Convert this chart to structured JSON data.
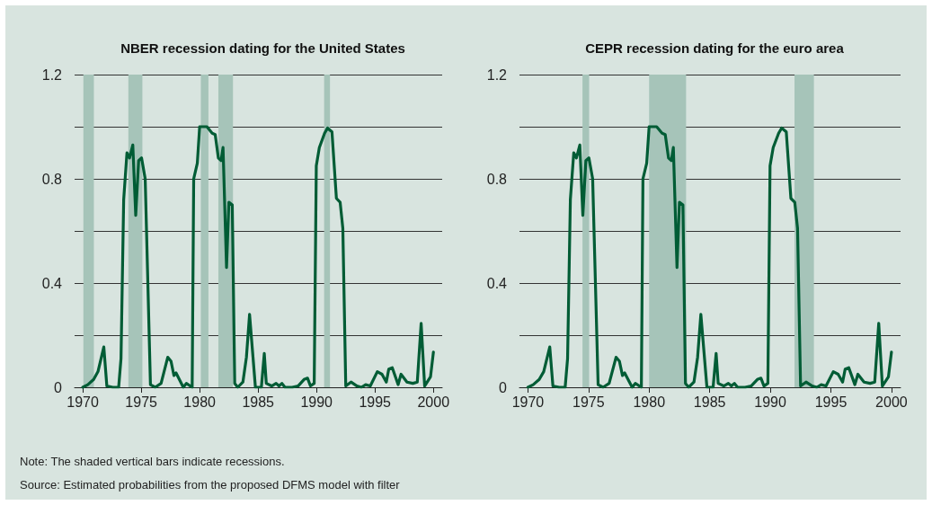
{
  "chart_data": [
    {
      "type": "line",
      "title": "NBER recession dating for the United States",
      "grid": "y",
      "marker": "none",
      "line_style": "solid",
      "xlim": [
        1969.3,
        2000.75
      ],
      "xticks": [
        1970,
        1975,
        1980,
        1985,
        1990,
        1995,
        2000
      ],
      "ylim": [
        0,
        1.2
      ],
      "yticks": [
        0,
        {
          "value": 0.2,
          "label": null
        },
        0.4,
        {
          "value": 0.6,
          "label": null
        },
        0.8,
        {
          "value": 1.0,
          "label": null
        },
        1.2
      ],
      "bands": [
        {
          "axis": "x",
          "from": 1970.05,
          "to": 1970.95,
          "color": "#a6c4b9"
        },
        {
          "axis": "x",
          "from": 1973.9,
          "to": 1975.1,
          "color": "#a6c4b9"
        },
        {
          "axis": "x",
          "from": 1980.1,
          "to": 1980.75,
          "color": "#a6c4b9"
        },
        {
          "axis": "x",
          "from": 1981.6,
          "to": 1982.85,
          "color": "#a6c4b9"
        },
        {
          "axis": "x",
          "from": 1990.65,
          "to": 1991.15,
          "color": "#a6c4b9"
        }
      ],
      "series": [
        {
          "color": "#005c35",
          "x": [
            1970,
            1970.43,
            1970.93,
            1971.3,
            1971.8,
            1972.06,
            1972.57,
            1973.07,
            1973.27,
            1973.5,
            1973.78,
            1974.0,
            1974.28,
            1974.53,
            1974.78,
            1975.03,
            1975.34,
            1975.79,
            1976.2,
            1976.7,
            1977.27,
            1977.55,
            1977.8,
            1977.98,
            1978.6,
            1978.86,
            1979.36,
            1979.49,
            1979.8,
            1980.0,
            1980.62,
            1981.07,
            1981.33,
            1981.6,
            1981.83,
            1982.0,
            1982.3,
            1982.5,
            1982.79,
            1983.0,
            1983.26,
            1983.7,
            1984.0,
            1984.27,
            1984.77,
            1985.28,
            1985.53,
            1985.7,
            1986.16,
            1986.54,
            1986.79,
            1987.04,
            1987.3,
            1987.92,
            1988.42,
            1988.93,
            1989.23,
            1989.48,
            1989.8,
            1989.98,
            1990.24,
            1990.69,
            1990.94,
            1991.32,
            1991.7,
            1992.02,
            1992.25,
            1992.5,
            1992.95,
            1993.46,
            1993.84,
            1994.2,
            1994.6,
            1995.2,
            1995.6,
            1995.97,
            1996.18,
            1996.48,
            1996.98,
            1997.23,
            1997.74,
            1998.24,
            1998.62,
            1998.95,
            1999.25,
            1999.75,
            2000.0
          ],
          "values": [
            0,
            0.01,
            0.03,
            0.06,
            0.155,
            0.005,
            0,
            0,
            0.11,
            0.72,
            0.9,
            0.88,
            0.93,
            0.66,
            0.87,
            0.88,
            0.8,
            0.01,
            0,
            0.015,
            0.115,
            0.1,
            0.045,
            0.055,
            0,
            0.015,
            0,
            0.8,
            0.86,
            1.0,
            1.0,
            0.975,
            0.97,
            0.88,
            0.87,
            0.92,
            0.46,
            0.71,
            0.7,
            0.015,
            0,
            0.02,
            0.115,
            0.28,
            0,
            0,
            0.13,
            0.015,
            0.005,
            0.015,
            0.005,
            0.015,
            0,
            0,
            0.005,
            0.03,
            0.035,
            0.005,
            0.015,
            0.85,
            0.92,
            0.975,
            0.995,
            0.98,
            0.725,
            0.71,
            0.61,
            0.005,
            0.02,
            0.005,
            0,
            0.01,
            0.005,
            0.06,
            0.05,
            0.02,
            0.07,
            0.075,
            0.01,
            0.05,
            0.02,
            0.015,
            0.02,
            0.245,
            0.005,
            0.04,
            0.135
          ]
        }
      ],
      "annotations": [
        "Note: The shaded vertical bars indicate recessions.",
        "Source: Estimated probabilities from the proposed DFMS model with filter"
      ]
    },
    {
      "type": "line",
      "title": "CEPR recession dating for the euro area",
      "grid": "y",
      "marker": "none",
      "line_style": "solid",
      "xlim": [
        1969.3,
        2000.75
      ],
      "xticks": [
        1970,
        1975,
        1980,
        1985,
        1990,
        1995,
        2000
      ],
      "ylim": [
        0,
        1.2
      ],
      "yticks": [
        0,
        {
          "value": 0.2,
          "label": null
        },
        0.4,
        {
          "value": 0.6,
          "label": null
        },
        0.8,
        {
          "value": 1.0,
          "label": null
        },
        1.2
      ],
      "bands": [
        {
          "axis": "x",
          "from": 1974.5,
          "to": 1975.05,
          "color": "#a6c4b9"
        },
        {
          "axis": "x",
          "from": 1980.0,
          "to": 1983.05,
          "color": "#a6c4b9"
        },
        {
          "axis": "x",
          "from": 1992.0,
          "to": 1993.6,
          "color": "#a6c4b9"
        }
      ],
      "series": [
        {
          "color": "#005c35",
          "x": [
            1970,
            1970.43,
            1970.93,
            1971.3,
            1971.8,
            1972.06,
            1972.57,
            1973.07,
            1973.27,
            1973.5,
            1973.78,
            1974.0,
            1974.28,
            1974.53,
            1974.78,
            1975.03,
            1975.34,
            1975.79,
            1976.2,
            1976.7,
            1977.27,
            1977.55,
            1977.8,
            1977.98,
            1978.6,
            1978.86,
            1979.36,
            1979.49,
            1979.8,
            1980.0,
            1980.62,
            1981.07,
            1981.33,
            1981.6,
            1981.83,
            1982.0,
            1982.3,
            1982.5,
            1982.79,
            1983.0,
            1983.26,
            1983.7,
            1984.0,
            1984.27,
            1984.77,
            1985.28,
            1985.53,
            1985.7,
            1986.16,
            1986.54,
            1986.79,
            1987.04,
            1987.3,
            1987.92,
            1988.42,
            1988.93,
            1989.23,
            1989.48,
            1989.8,
            1989.98,
            1990.24,
            1990.69,
            1990.94,
            1991.32,
            1991.7,
            1992.02,
            1992.25,
            1992.5,
            1992.95,
            1993.46,
            1993.84,
            1994.2,
            1994.6,
            1995.2,
            1995.6,
            1995.97,
            1996.18,
            1996.48,
            1996.98,
            1997.23,
            1997.74,
            1998.24,
            1998.62,
            1998.95,
            1999.25,
            1999.75,
            2000.0
          ],
          "values": [
            0,
            0.01,
            0.03,
            0.06,
            0.155,
            0.005,
            0,
            0,
            0.11,
            0.72,
            0.9,
            0.88,
            0.93,
            0.66,
            0.87,
            0.88,
            0.8,
            0.01,
            0,
            0.015,
            0.115,
            0.1,
            0.045,
            0.055,
            0,
            0.015,
            0,
            0.8,
            0.86,
            1.0,
            1.0,
            0.975,
            0.97,
            0.88,
            0.87,
            0.92,
            0.46,
            0.71,
            0.7,
            0.015,
            0,
            0.02,
            0.115,
            0.28,
            0,
            0,
            0.13,
            0.015,
            0.005,
            0.015,
            0.005,
            0.015,
            0,
            0,
            0.005,
            0.03,
            0.035,
            0.005,
            0.015,
            0.85,
            0.92,
            0.975,
            0.995,
            0.98,
            0.725,
            0.71,
            0.61,
            0.005,
            0.02,
            0.005,
            0,
            0.01,
            0.005,
            0.06,
            0.05,
            0.02,
            0.07,
            0.075,
            0.01,
            0.05,
            0.02,
            0.015,
            0.02,
            0.245,
            0.005,
            0.04,
            0.135
          ]
        }
      ]
    }
  ]
}
